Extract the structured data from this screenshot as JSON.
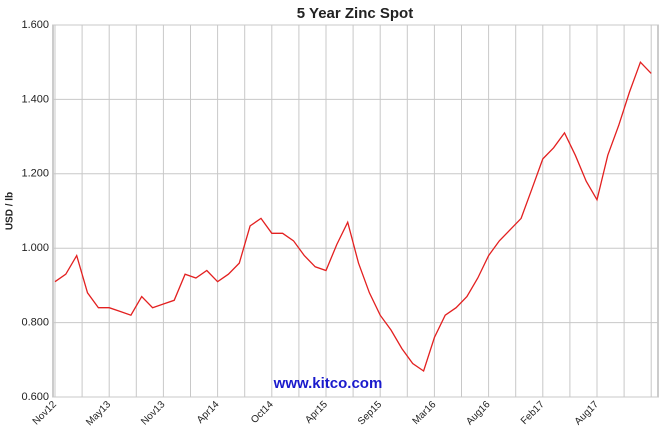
{
  "chart_data": {
    "type": "line",
    "title": "5 Year Zinc Spot",
    "y_label": "USD / lb",
    "watermark": "www.kitco.com",
    "categories": [
      "Nov12",
      null,
      null,
      null,
      null,
      "May13",
      null,
      null,
      null,
      null,
      "Nov13",
      null,
      null,
      null,
      null,
      "Apr14",
      null,
      null,
      null,
      null,
      "Oct14",
      null,
      null,
      null,
      null,
      "Apr15",
      null,
      null,
      null,
      null,
      "Sep15",
      null,
      null,
      null,
      null,
      "Mar16",
      null,
      null,
      null,
      null,
      "Aug16",
      null,
      null,
      null,
      null,
      "Feb17",
      null,
      null,
      null,
      null,
      "Aug17",
      null,
      null,
      null,
      null,
      null
    ],
    "series": [
      {
        "name": "Zinc",
        "color": "#e32020",
        "values": [
          0.91,
          0.93,
          0.98,
          0.88,
          0.84,
          0.84,
          0.83,
          0.82,
          0.87,
          0.84,
          0.85,
          0.86,
          0.93,
          0.92,
          0.94,
          0.91,
          0.93,
          0.96,
          1.06,
          1.08,
          1.04,
          1.04,
          1.02,
          0.98,
          0.95,
          0.94,
          1.01,
          1.07,
          0.96,
          0.88,
          0.82,
          0.78,
          0.73,
          0.69,
          0.67,
          0.76,
          0.82,
          0.84,
          0.87,
          0.92,
          0.98,
          1.02,
          1.05,
          1.08,
          1.16,
          1.24,
          1.27,
          1.31,
          1.25,
          1.18,
          1.13,
          1.25,
          1.33,
          1.42,
          1.5,
          1.47
        ]
      }
    ],
    "ylim": [
      0.6,
      1.6
    ],
    "yticks": [
      {
        "value": 0.6,
        "label": "0.600"
      },
      {
        "value": 0.8,
        "label": "0.800"
      },
      {
        "value": 1.0,
        "label": "1.000"
      },
      {
        "value": 1.2,
        "label": "1.200"
      },
      {
        "value": 1.4,
        "label": "1.400"
      },
      {
        "value": 1.6,
        "label": "1.600"
      }
    ],
    "grid": true
  }
}
